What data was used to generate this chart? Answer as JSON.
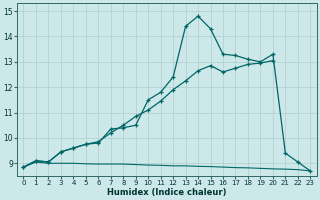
{
  "xlabel": "Humidex (Indice chaleur)",
  "bg_color": "#cde8e8",
  "grid_color": "#b0cccc",
  "line_color": "#006666",
  "xlim": [
    -0.5,
    23.5
  ],
  "ylim": [
    8.5,
    15.3
  ],
  "yticks": [
    9,
    10,
    11,
    12,
    13,
    14,
    15
  ],
  "xticks": [
    0,
    1,
    2,
    3,
    4,
    5,
    6,
    7,
    8,
    9,
    10,
    11,
    12,
    13,
    14,
    15,
    16,
    17,
    18,
    19,
    20,
    21,
    22,
    23
  ],
  "line1_x": [
    0,
    1,
    2,
    3,
    4,
    5,
    6,
    7,
    8,
    9,
    10,
    11,
    12,
    13,
    14,
    15,
    16,
    17,
    18,
    19,
    20,
    21,
    22,
    23
  ],
  "line1_y": [
    8.85,
    9.1,
    9.05,
    9.45,
    9.6,
    9.75,
    9.8,
    10.35,
    10.4,
    10.5,
    11.5,
    11.8,
    12.4,
    14.4,
    14.8,
    14.3,
    13.3,
    13.25,
    13.1,
    13.0,
    13.3,
    9.4,
    9.05,
    8.7
  ],
  "line2_x": [
    0,
    1,
    2,
    3,
    4,
    5,
    6,
    7,
    8,
    9,
    10,
    11,
    12,
    13,
    14,
    15,
    16,
    17,
    18,
    19,
    20
  ],
  "line2_y": [
    8.85,
    9.1,
    9.05,
    9.45,
    9.6,
    9.75,
    9.85,
    10.2,
    10.5,
    10.85,
    11.1,
    11.45,
    11.9,
    12.25,
    12.65,
    12.85,
    12.6,
    12.75,
    12.9,
    12.95,
    13.05
  ],
  "line3_x": [
    0,
    1,
    2,
    3,
    4,
    5,
    6,
    7,
    8,
    9,
    10,
    11,
    12,
    13,
    14,
    15,
    16,
    17,
    18,
    19,
    20,
    21,
    22,
    23
  ],
  "line3_y": [
    8.85,
    9.05,
    9.0,
    9.0,
    9.0,
    8.98,
    8.97,
    8.97,
    8.97,
    8.95,
    8.93,
    8.92,
    8.9,
    8.9,
    8.88,
    8.87,
    8.85,
    8.83,
    8.82,
    8.8,
    8.78,
    8.77,
    8.75,
    8.7
  ]
}
